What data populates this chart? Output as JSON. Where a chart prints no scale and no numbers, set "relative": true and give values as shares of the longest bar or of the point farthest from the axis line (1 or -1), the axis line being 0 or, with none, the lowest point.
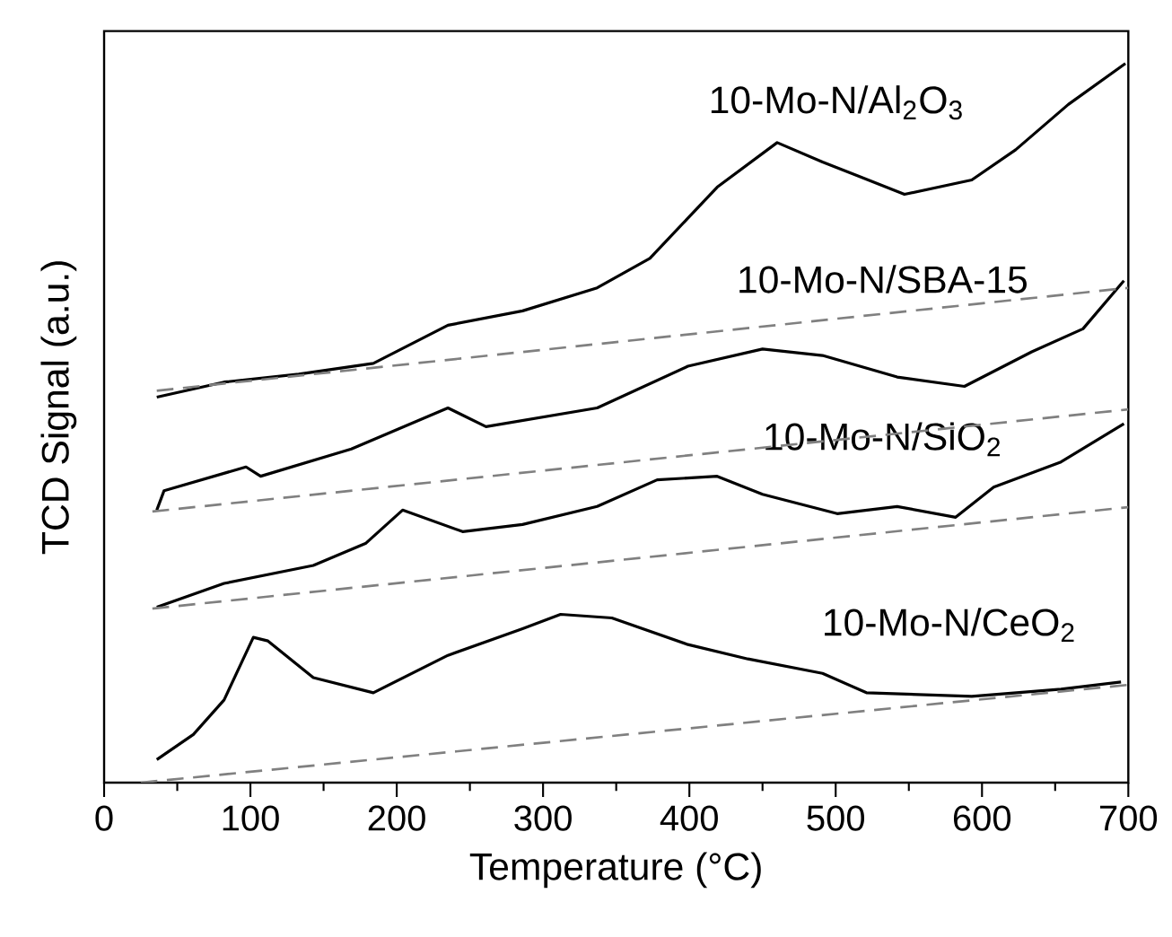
{
  "chart_data": {
    "type": "line",
    "relative": true,
    "xlabel": "Temperature (°C)",
    "ylabel": "TCD Signal (a.u.)",
    "xlim": [
      0,
      700
    ],
    "xticks": [
      0,
      {
        "value": 50,
        "label": null
      },
      100,
      {
        "value": 150,
        "label": null
      },
      200,
      {
        "value": 250,
        "label": null
      },
      300,
      {
        "value": 350,
        "label": null
      },
      400,
      {
        "value": 450,
        "label": null
      },
      500,
      {
        "value": 550,
        "label": null
      },
      600,
      {
        "value": 650,
        "label": null
      },
      700
    ],
    "tick_labels": "x",
    "grid": false,
    "legend": false,
    "marker": "none",
    "series": [
      {
        "name": "10-Mo-N/Al$_{2}$O$_{3}$",
        "color": "#000000",
        "line_style": "solid",
        "x": [
          36,
          82,
          133,
          184,
          235,
          286,
          337,
          373,
          419,
          460,
          491,
          516,
          547,
          593,
          623,
          659,
          698
        ],
        "values": [
          0.536,
          0.557,
          0.568,
          0.583,
          0.636,
          0.656,
          0.688,
          0.729,
          0.828,
          0.89,
          0.863,
          0.843,
          0.818,
          0.838,
          0.88,
          0.943,
          1.0
        ]
      },
      {
        "name": "10-Mo-N/SBA-15",
        "color": "#000000",
        "line_style": "solid",
        "x": [
          36,
          41,
          97,
          107,
          169,
          235,
          261,
          337,
          399,
          450,
          491,
          542,
          588,
          634,
          669,
          697
        ],
        "values": [
          0.379,
          0.406,
          0.439,
          0.426,
          0.464,
          0.521,
          0.495,
          0.521,
          0.579,
          0.603,
          0.594,
          0.564,
          0.551,
          0.599,
          0.631,
          0.698
        ]
      },
      {
        "name": "10-Mo-N/SiO$_{2}$",
        "color": "#000000",
        "line_style": "solid",
        "x": [
          36,
          82,
          143,
          179,
          204,
          245,
          286,
          337,
          378,
          419,
          450,
          501,
          542,
          582,
          608,
          654,
          697
        ],
        "values": [
          0.244,
          0.277,
          0.302,
          0.333,
          0.379,
          0.349,
          0.359,
          0.384,
          0.421,
          0.426,
          0.401,
          0.374,
          0.384,
          0.369,
          0.411,
          0.446,
          0.499
        ]
      },
      {
        "name": "10-Mo-N/CeO$_{2}$",
        "color": "#000000",
        "line_style": "solid",
        "x": [
          36,
          61,
          82,
          102,
          112,
          143,
          184,
          235,
          286,
          312,
          347,
          399,
          440,
          491,
          521,
          593,
          654,
          695
        ],
        "values": [
          0.032,
          0.067,
          0.115,
          0.202,
          0.197,
          0.146,
          0.125,
          0.177,
          0.214,
          0.234,
          0.229,
          0.192,
          0.172,
          0.152,
          0.125,
          0.12,
          0.13,
          0.14
        ]
      },
      {
        "color": "#808080",
        "line_style": "dashed",
        "x": [
          36,
          700
        ],
        "values": [
          0.545,
          0.688
        ]
      },
      {
        "color": "#808080",
        "line_style": "dashed",
        "x": [
          33,
          700
        ],
        "values": [
          0.377,
          0.519
        ]
      },
      {
        "color": "#808080",
        "line_style": "dashed",
        "x": [
          33,
          700
        ],
        "values": [
          0.242,
          0.383
        ]
      },
      {
        "color": "#808080",
        "line_style": "dashed",
        "x": [
          25,
          700
        ],
        "values": [
          0.0,
          0.136
        ]
      }
    ]
  }
}
